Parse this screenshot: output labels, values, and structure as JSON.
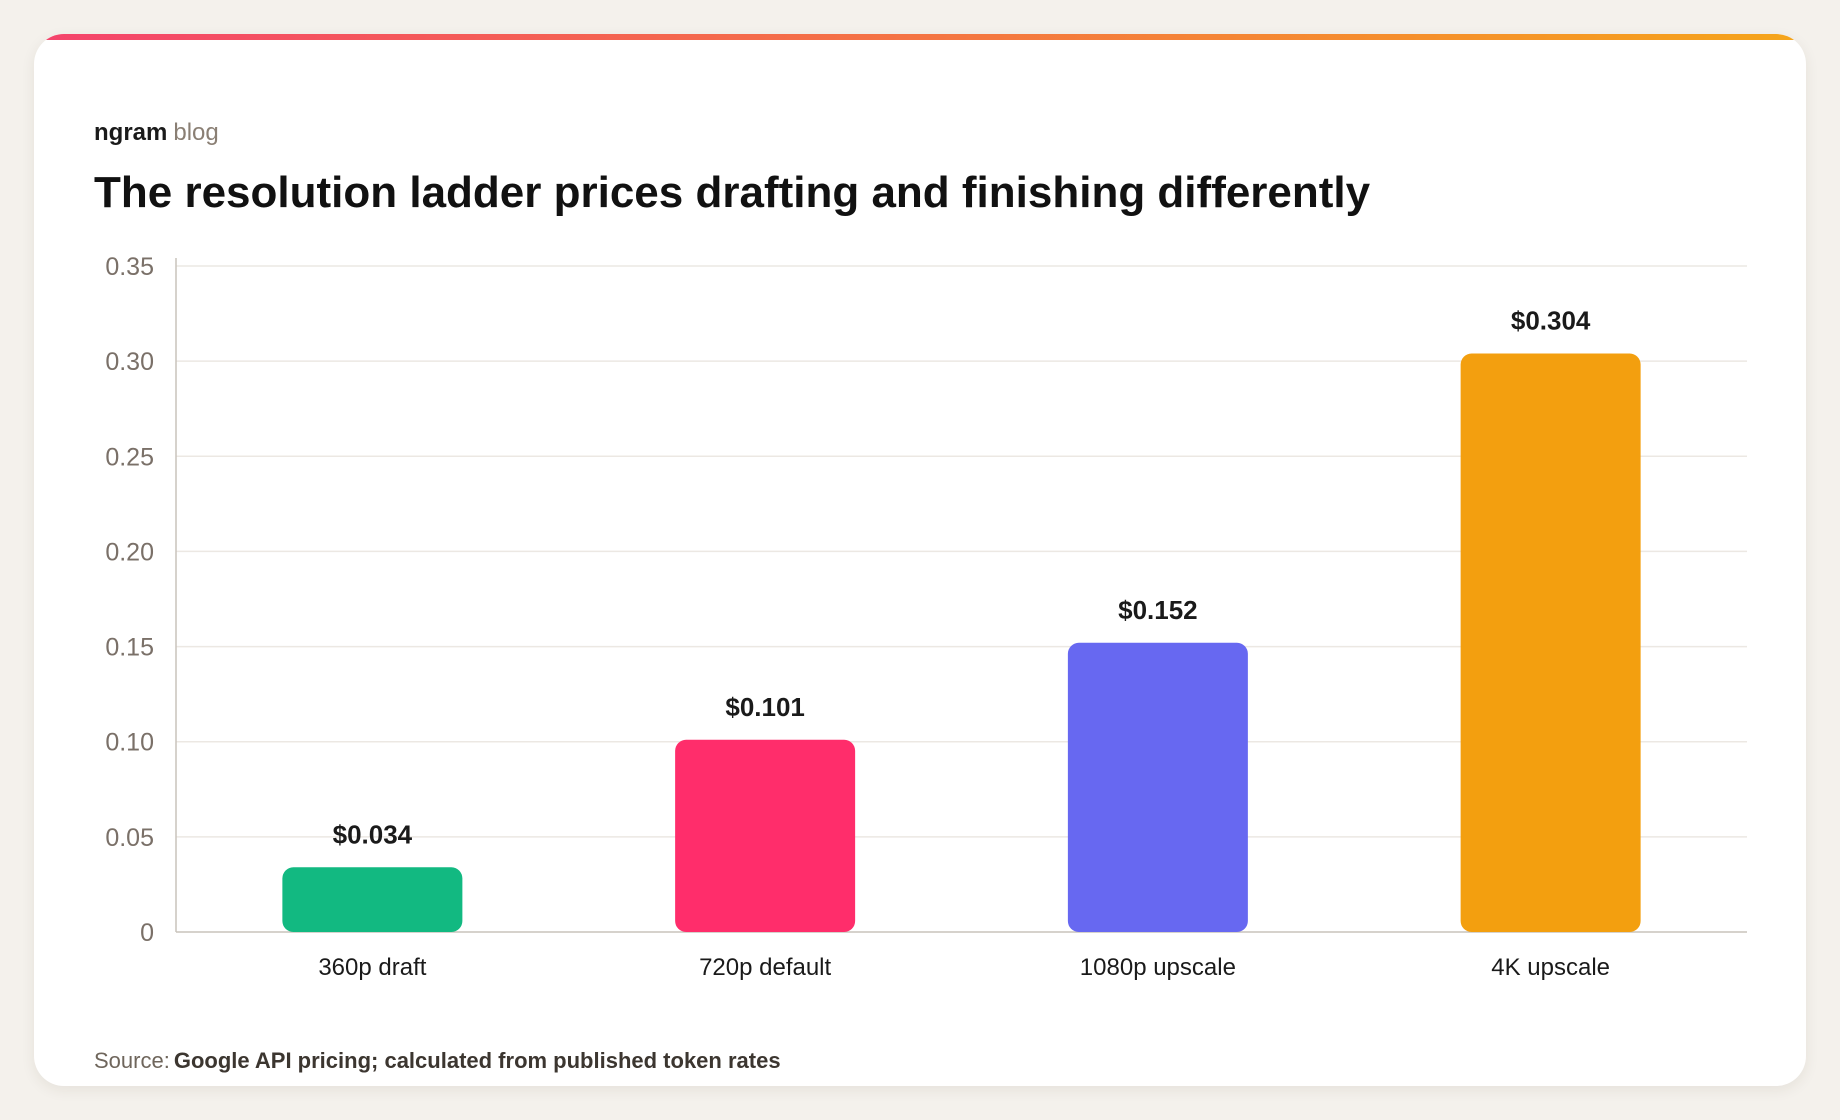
{
  "brand": {
    "name": "ngram",
    "suffix": "blog"
  },
  "title": "The resolution ladder prices drafting and finishing differently",
  "source": {
    "label": "Source:",
    "text": "Google API pricing; calculated from published token rates"
  },
  "colors": {
    "page_background": "#f4f1ec",
    "card_background": "#ffffff",
    "accent_gradient": [
      "#f4436c",
      "#f5a51a"
    ],
    "gridline": "#ece8e3",
    "axis": "#c9c3bc"
  },
  "chart_data": {
    "type": "bar",
    "title": "The resolution ladder prices drafting and finishing differently",
    "xlabel": "",
    "ylabel": "",
    "categories": [
      "360p draft",
      "720p default",
      "1080p upscale",
      "4K upscale"
    ],
    "values": [
      0.034,
      0.101,
      0.152,
      0.304
    ],
    "data_labels": [
      "$0.034",
      "$0.101",
      "$0.152",
      "$0.304"
    ],
    "bar_colors": [
      "#12b981",
      "#ff2d6b",
      "#6768f1",
      "#f39f0f"
    ],
    "ylim": [
      0,
      0.35
    ],
    "yticks": [
      0,
      0.05,
      0.1,
      0.15,
      0.2,
      0.25,
      0.3,
      0.35
    ],
    "ytick_labels": [
      "0",
      "0.05",
      "0.10",
      "0.15",
      "0.20",
      "0.25",
      "0.30",
      "0.35"
    ],
    "grid": true,
    "legend": "none"
  }
}
